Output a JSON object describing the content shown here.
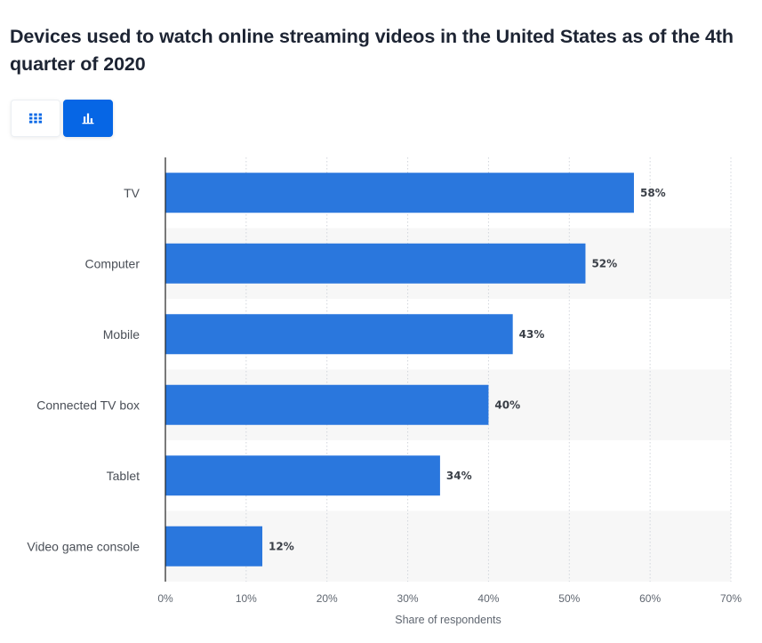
{
  "header": {
    "title": "Devices used to watch online streaming videos in the United States as of the 4th quarter of 2020"
  },
  "view_toggle": {
    "table_icon": "grid-icon",
    "chart_icon": "bar-chart-icon",
    "active": "chart"
  },
  "colors": {
    "bar": "#2a77dd",
    "band": "#f7f7f7",
    "grid": "#d2d6dc",
    "axis": "#222222",
    "accent": "#0666e5"
  },
  "chart_data": {
    "type": "bar",
    "orientation": "horizontal",
    "title": "Devices used to watch online streaming videos in the United States as of the 4th quarter of 2020",
    "categories": [
      "TV",
      "Computer",
      "Mobile",
      "Connected TV box",
      "Tablet",
      "Video game console"
    ],
    "values": [
      58,
      52,
      43,
      40,
      34,
      12
    ],
    "value_labels": [
      "58%",
      "52%",
      "43%",
      "40%",
      "34%",
      "12%"
    ],
    "xlabel": "Share of respondents",
    "ylabel": "",
    "xlim": [
      0,
      70
    ],
    "xticks": [
      0,
      10,
      20,
      30,
      40,
      50,
      60,
      70
    ],
    "xtick_labels": [
      "0%",
      "10%",
      "20%",
      "30%",
      "40%",
      "50%",
      "60%",
      "70%"
    ],
    "grid": "vertical-dotted",
    "legend": "none"
  }
}
